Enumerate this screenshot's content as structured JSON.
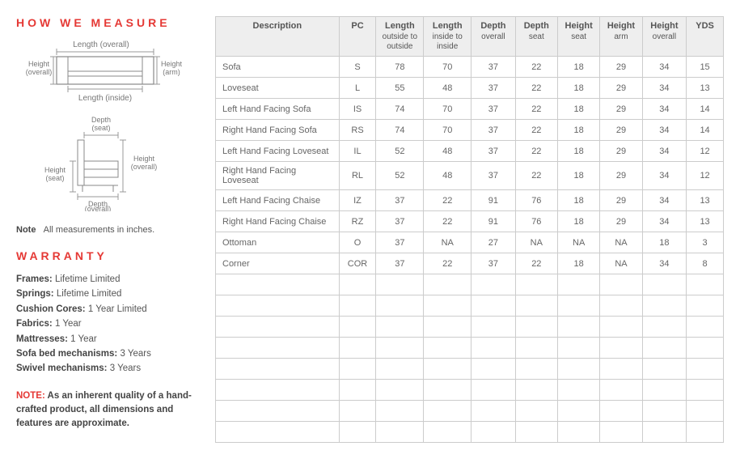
{
  "left": {
    "measure_title": "HOW WE MEASURE",
    "diagram1": {
      "length_overall": "Length (overall)",
      "height_overall": "Height\n(overall)",
      "height_arm": "Height\n(arm)",
      "length_inside": "Length (inside)"
    },
    "diagram2": {
      "depth_seat": "Depth\n(seat)",
      "height_overall": "Height\n(overall)",
      "height_seat": "Height\n(seat)",
      "depth_overall": "Depth\n(overall)"
    },
    "note_label": "Note",
    "note_text": "All measurements in inches.",
    "warranty_title": "WARRANTY",
    "warranty_items": [
      {
        "label": "Frames:",
        "value": " Lifetime Limited"
      },
      {
        "label": "Springs:",
        "value": " Lifetime Limited"
      },
      {
        "label": "Cushion Cores:",
        "value": " 1 Year Limited"
      },
      {
        "label": "Fabrics:",
        "value": " 1 Year"
      },
      {
        "label": "Mattresses:",
        "value": " 1 Year"
      },
      {
        "label": "Sofa bed mechanisms:",
        "value": " 3 Years"
      },
      {
        "label": "Swivel mechanisms:",
        "value": " 3 Years"
      }
    ],
    "footer_note_label": "NOTE:",
    "footer_note_text": " As an inherent quality of a hand-crafted product, all dimensions and features are approximate."
  },
  "table": {
    "columns": [
      {
        "main": "Description",
        "sub": ""
      },
      {
        "main": "PC",
        "sub": ""
      },
      {
        "main": "Length",
        "sub": "outside to outside"
      },
      {
        "main": "Length",
        "sub": "inside to inside"
      },
      {
        "main": "Depth",
        "sub": "overall"
      },
      {
        "main": "Depth",
        "sub": "seat"
      },
      {
        "main": "Height",
        "sub": "seat"
      },
      {
        "main": "Height",
        "sub": "arm"
      },
      {
        "main": "Height",
        "sub": "overall"
      },
      {
        "main": "YDS",
        "sub": ""
      }
    ],
    "rows": [
      [
        "Sofa",
        "S",
        "78",
        "70",
        "37",
        "22",
        "18",
        "29",
        "34",
        "15"
      ],
      [
        "Loveseat",
        "L",
        "55",
        "48",
        "37",
        "22",
        "18",
        "29",
        "34",
        "13"
      ],
      [
        "Left Hand Facing Sofa",
        "IS",
        "74",
        "70",
        "37",
        "22",
        "18",
        "29",
        "34",
        "14"
      ],
      [
        "Right Hand Facing Sofa",
        "RS",
        "74",
        "70",
        "37",
        "22",
        "18",
        "29",
        "34",
        "14"
      ],
      [
        "Left Hand Facing Loveseat",
        "IL",
        "52",
        "48",
        "37",
        "22",
        "18",
        "29",
        "34",
        "12"
      ],
      [
        "Right Hand Facing Loveseat",
        "RL",
        "52",
        "48",
        "37",
        "22",
        "18",
        "29",
        "34",
        "12"
      ],
      [
        "Left Hand Facing Chaise",
        "IZ",
        "37",
        "22",
        "91",
        "76",
        "18",
        "29",
        "34",
        "13"
      ],
      [
        "Right Hand Facing Chaise",
        "RZ",
        "37",
        "22",
        "91",
        "76",
        "18",
        "29",
        "34",
        "13"
      ],
      [
        "Ottoman",
        "O",
        "37",
        "NA",
        "27",
        "NA",
        "NA",
        "NA",
        "18",
        "3"
      ],
      [
        "Corner",
        "COR",
        "37",
        "22",
        "37",
        "22",
        "18",
        "NA",
        "34",
        "8"
      ]
    ],
    "empty_rows": 8,
    "col_widths": [
      "140px",
      "42px",
      "54px",
      "54px",
      "50px",
      "48px",
      "48px",
      "48px",
      "50px",
      "42px"
    ],
    "header_bg": "#eeeeee",
    "border_color": "#cccccc"
  }
}
